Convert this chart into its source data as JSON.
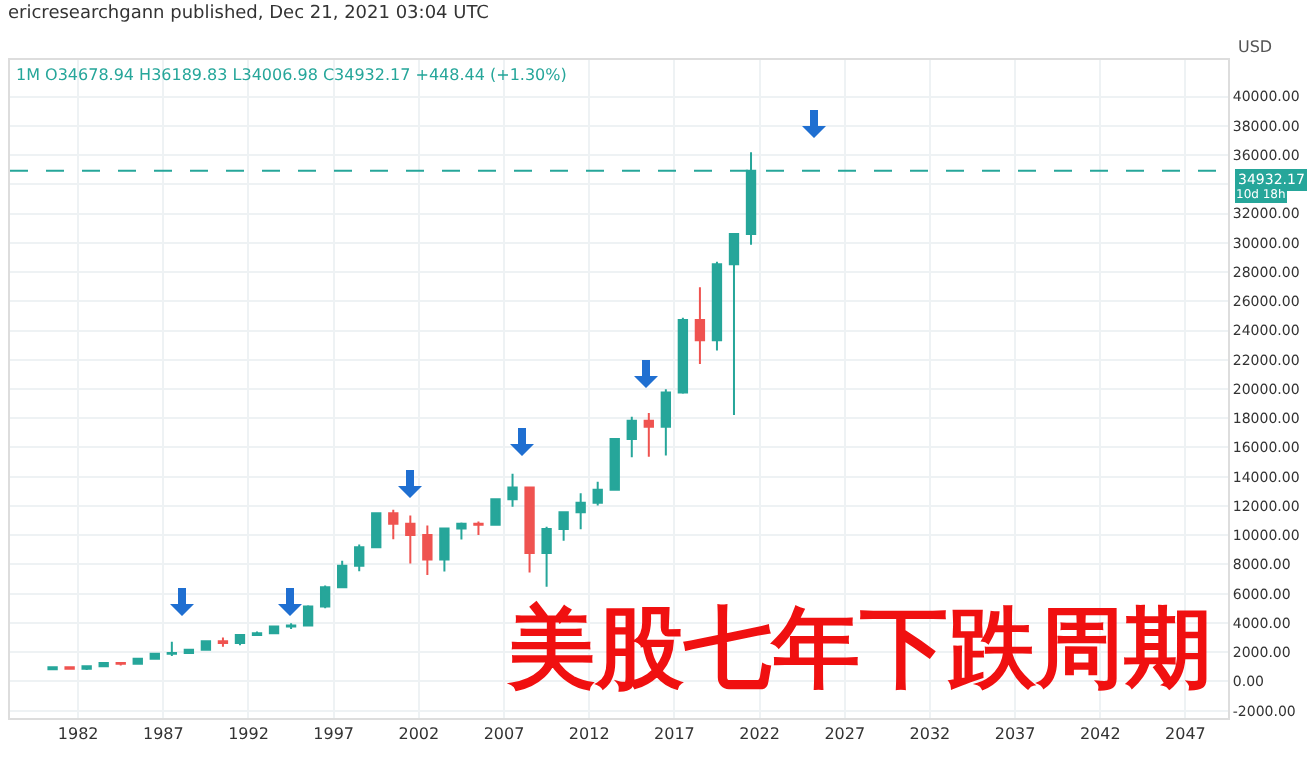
{
  "chart_data": {
    "type": "candlestick",
    "title": "1M  O34678.94  H36189.83  L34006.98  C34932.17  +448.44 (+1.30%)",
    "subtitle": "ericresearchgann published, Dec 21, 2021 03:04 UTC",
    "x": [
      1980.5,
      1981.5,
      1982.5,
      1983.5,
      1984.5,
      1985.5,
      1986.5,
      1987.5,
      1988.5,
      1989.5,
      1990.5,
      1991.5,
      1992.5,
      1993.5,
      1994.5,
      1995.5,
      1996.5,
      1997.5,
      1998.5,
      1999.5,
      2000.5,
      2001.5,
      2002.5,
      2003.5,
      2004.5,
      2005.5,
      2006.5,
      2007.5,
      2008.5,
      2009.5,
      2010.5,
      2011.5,
      2012.5,
      2013.5,
      2014.5,
      2015.5,
      2016.5,
      2017.5,
      2018.5,
      2019.5,
      2020.5,
      2021.5
    ],
    "ohlc": [
      [
        838,
        1000,
        759,
        964
      ],
      [
        964,
        1024,
        824,
        875
      ],
      [
        875,
        1070,
        776,
        1046
      ],
      [
        1046,
        1287,
        1027,
        1259
      ],
      [
        1259,
        1287,
        1086,
        1212
      ],
      [
        1212,
        1553,
        1184,
        1547
      ],
      [
        1547,
        1955,
        1502,
        1896
      ],
      [
        1896,
        2722,
        1739,
        1939
      ],
      [
        1939,
        2183,
        1879,
        2169
      ],
      [
        2169,
        2791,
        2144,
        2753
      ],
      [
        2753,
        3000,
        2365,
        2634
      ],
      [
        2634,
        3169,
        2470,
        3169
      ],
      [
        3169,
        3413,
        3136,
        3301
      ],
      [
        3301,
        3794,
        3242,
        3754
      ],
      [
        3754,
        3978,
        3593,
        3834
      ],
      [
        3834,
        5216,
        3832,
        5117
      ],
      [
        5117,
        6561,
        5000,
        6448
      ],
      [
        6448,
        8259,
        6391,
        7908
      ],
      [
        7908,
        9374,
        7539,
        9181
      ],
      [
        9181,
        11497,
        9120,
        11497
      ],
      [
        11497,
        11750,
        9731,
        10787
      ],
      [
        10787,
        11350,
        8062,
        10021
      ],
      [
        10021,
        10673,
        7286,
        8342
      ],
      [
        8342,
        10454,
        7524,
        10454
      ],
      [
        10454,
        10868,
        9708,
        10783
      ],
      [
        10783,
        10940,
        10012,
        10718
      ],
      [
        10718,
        12511,
        10667,
        12463
      ],
      [
        12463,
        14198,
        11939,
        13264
      ],
      [
        13264,
        13279,
        7450,
        8776
      ],
      [
        8776,
        10580,
        6470,
        10428
      ],
      [
        10428,
        11625,
        9614,
        11578
      ],
      [
        11578,
        12876,
        10404,
        12217
      ],
      [
        12217,
        13661,
        12035,
        13104
      ],
      [
        13104,
        16588,
        13104,
        16577
      ],
      [
        16577,
        18103,
        15340,
        17823
      ],
      [
        17823,
        18351,
        15370,
        17425
      ],
      [
        17425,
        19987,
        15450,
        19763
      ],
      [
        19763,
        24876,
        19677,
        24719
      ],
      [
        24719,
        26952,
        21713,
        23327
      ],
      [
        23327,
        28702,
        22638,
        28538
      ],
      [
        28538,
        30637,
        18214,
        30606
      ],
      [
        30606,
        36190,
        29857,
        34932
      ]
    ],
    "colors": [
      "#26a69a",
      "#ef5350",
      "#26a69a",
      "#26a69a",
      "#ef5350",
      "#26a69a",
      "#26a69a",
      "#26a69a",
      "#26a69a",
      "#26a69a",
      "#ef5350",
      "#26a69a",
      "#26a69a",
      "#26a69a",
      "#26a69a",
      "#26a69a",
      "#26a69a",
      "#26a69a",
      "#26a69a",
      "#26a69a",
      "#ef5350",
      "#ef5350",
      "#ef5350",
      "#26a69a",
      "#26a69a",
      "#ef5350",
      "#26a69a",
      "#26a69a",
      "#ef5350",
      "#26a69a",
      "#26a69a",
      "#26a69a",
      "#26a69a",
      "#26a69a",
      "#26a69a",
      "#ef5350",
      "#26a69a",
      "#26a69a",
      "#ef5350",
      "#26a69a",
      "#26a69a",
      "#26a69a"
    ],
    "xlim": [
      1978,
      2049.5
    ],
    "xticks": [
      1982,
      1987,
      1992,
      1997,
      2002,
      2007,
      2012,
      2017,
      2022,
      2027,
      2032,
      2037,
      2042,
      2047
    ],
    "ylim": [
      -2500,
      42500
    ],
    "yticks": [
      {
        "value": -2000,
        "label": "-2000.00"
      },
      {
        "value": 0,
        "label": "0.00"
      },
      {
        "value": 2000,
        "label": "2000.00"
      },
      {
        "value": 4000,
        "label": "4000.00"
      },
      {
        "value": 6000,
        "label": "6000.00"
      },
      {
        "value": 8000,
        "label": "8000.00"
      },
      {
        "value": 10000,
        "label": "10000.00"
      },
      {
        "value": 12000,
        "label": "12000.00"
      },
      {
        "value": 14000,
        "label": "14000.00"
      },
      {
        "value": 16000,
        "label": "16000.00"
      },
      {
        "value": 18000,
        "label": "18000.00"
      },
      {
        "value": 20000,
        "label": "20000.00"
      },
      {
        "value": 22000,
        "label": "22000.00"
      },
      {
        "value": 24000,
        "label": "24000.00"
      },
      {
        "value": 26000,
        "label": "26000.00"
      },
      {
        "value": 28000,
        "label": "28000.00"
      },
      {
        "value": 30000,
        "label": "30000.00"
      },
      {
        "value": 32000,
        "label": "32000.00"
      },
      {
        "value": 34000,
        "label": null
      },
      {
        "value": 36000,
        "label": "36000.00"
      },
      {
        "value": 38000,
        "label": "38000.00"
      },
      {
        "value": 40000,
        "label": "40000.00"
      }
    ],
    "ref_lines": [
      {
        "axis": "y",
        "value": 34932.17,
        "label": "34932.17",
        "color": "#26a69a",
        "line_style": "dashed"
      }
    ],
    "annotations": [
      "美股七年下跌周期",
      "10d 18h",
      "USD"
    ],
    "grid": true
  }
}
